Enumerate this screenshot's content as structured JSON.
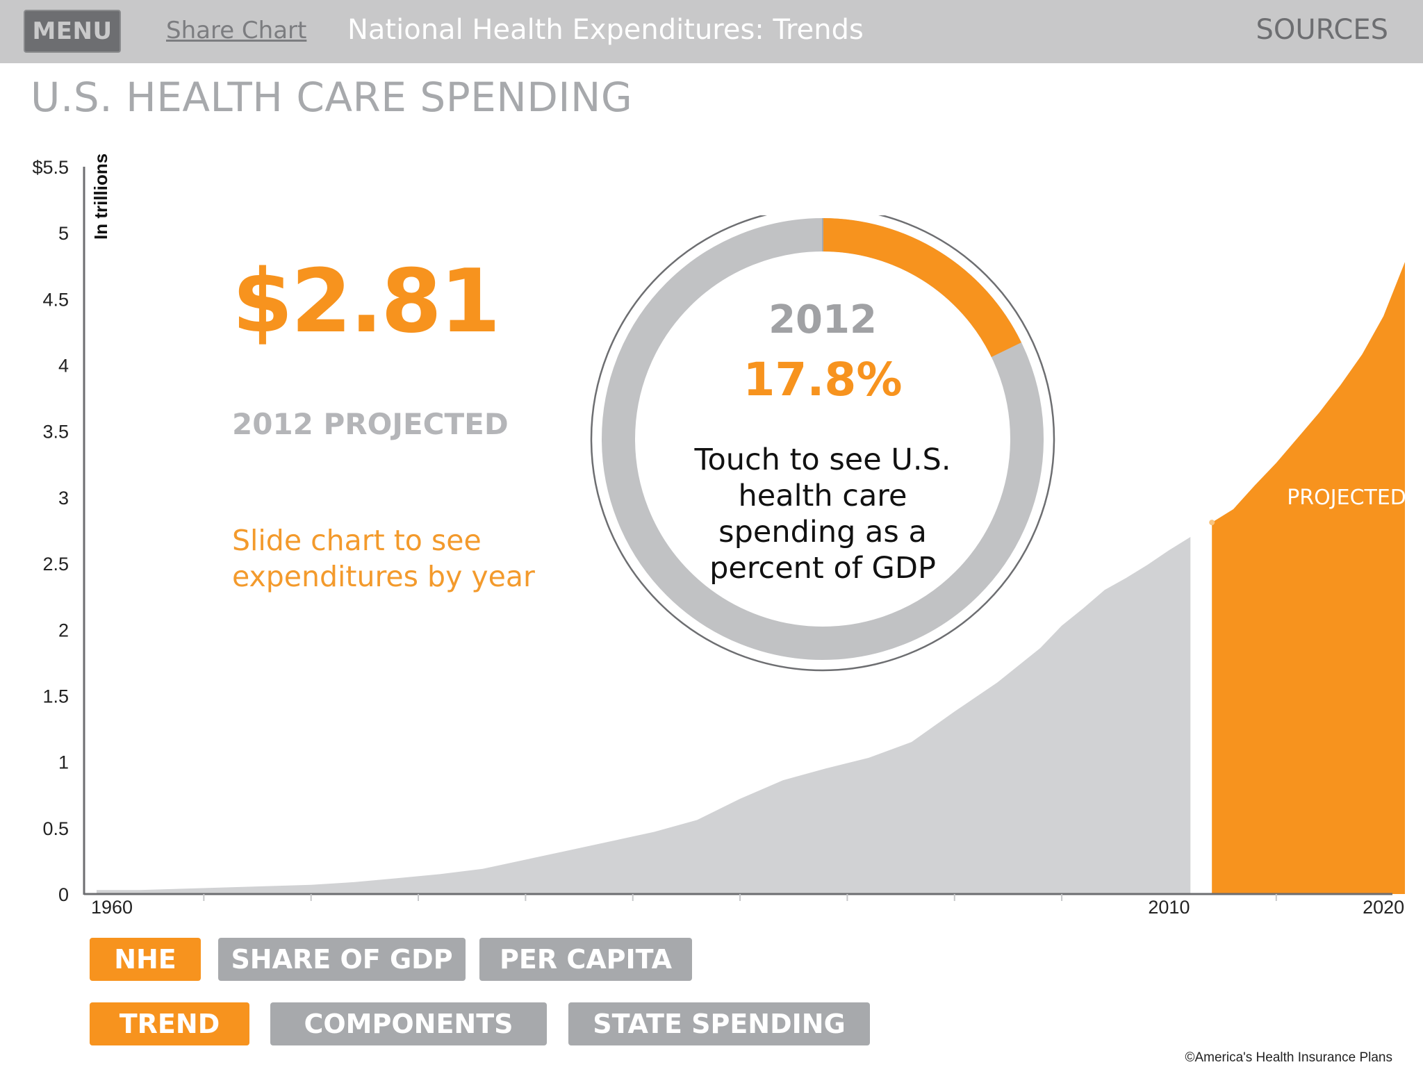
{
  "header": {
    "menu_label": "MENU",
    "share_label": "Share Chart",
    "title": "National Health Expenditures: Trends",
    "sources_label": "SOURCES"
  },
  "page_title": "U.S. HEALTH CARE SPENDING",
  "highlight": {
    "value": "$2.81",
    "year_label": "2012 PROJECTED",
    "slide_hint": "Slide chart to see expenditures by year"
  },
  "gdp_donut": {
    "year": "2012",
    "percent_text": "17.8%",
    "percent": 17.8,
    "hint": "Touch to see U.S. health care spending as a percent of GDP"
  },
  "tabs_row1": [
    {
      "label": "NHE",
      "active": true
    },
    {
      "label": "SHARE OF GDP",
      "active": false
    },
    {
      "label": "PER CAPITA",
      "active": false
    }
  ],
  "tabs_row2": [
    {
      "label": "TREND",
      "active": true
    },
    {
      "label": "COMPONENTS",
      "active": false
    },
    {
      "label": "STATE SPENDING",
      "active": false
    }
  ],
  "copyright": "©America's Health Insurance Plans",
  "colors": {
    "accent": "#f7931e",
    "historical_fill": "#d1d2d4",
    "inactive_tab": "#a7a9ac",
    "topbar": "#c8c8c9"
  },
  "chart_data": {
    "type": "area",
    "ylabel": "In trillions",
    "ylim": [
      0,
      5.5
    ],
    "yticks": [
      "$5.5",
      "5",
      "4.5",
      "4",
      "3.5",
      "3",
      "2.5",
      "2",
      "1.5",
      "1",
      "0.5",
      "0"
    ],
    "ytick_values": [
      5.5,
      5,
      4.5,
      4,
      3.5,
      3,
      2.5,
      2,
      1.5,
      1,
      0.5,
      0
    ],
    "xlim": [
      1960,
      2021
    ],
    "xticks": [
      "1960",
      "2010",
      "2020"
    ],
    "xtick_values": [
      1960,
      2010,
      2020
    ],
    "minor_xtick_values": [
      1965,
      1970,
      1975,
      1980,
      1985,
      1990,
      1995,
      2000,
      2005,
      2015
    ],
    "series": [
      {
        "name": "",
        "values": [
          [
            1960,
            0.03
          ],
          [
            1962,
            0.03
          ],
          [
            1964,
            0.04
          ],
          [
            1966,
            0.05
          ],
          [
            1968,
            0.06
          ],
          [
            1970,
            0.07
          ],
          [
            1972,
            0.09
          ],
          [
            1974,
            0.12
          ],
          [
            1976,
            0.15
          ],
          [
            1978,
            0.19
          ],
          [
            1980,
            0.26
          ],
          [
            1982,
            0.33
          ],
          [
            1984,
            0.4
          ],
          [
            1986,
            0.47
          ],
          [
            1988,
            0.56
          ],
          [
            1990,
            0.72
          ],
          [
            1992,
            0.86
          ],
          [
            1994,
            0.95
          ],
          [
            1996,
            1.03
          ],
          [
            1998,
            1.15
          ],
          [
            2000,
            1.38
          ],
          [
            2002,
            1.6
          ],
          [
            2004,
            1.86
          ],
          [
            2005,
            2.03
          ],
          [
            2006,
            2.16
          ],
          [
            2007,
            2.3
          ],
          [
            2008,
            2.39
          ],
          [
            2009,
            2.49
          ],
          [
            2010,
            2.6
          ],
          [
            2011,
            2.7
          ]
        ]
      },
      {
        "name": "PROJECTED",
        "values": [
          [
            2012,
            2.81
          ],
          [
            2013,
            2.91
          ],
          [
            2014,
            3.09
          ],
          [
            2015,
            3.26
          ],
          [
            2016,
            3.45
          ],
          [
            2017,
            3.64
          ],
          [
            2018,
            3.85
          ],
          [
            2019,
            4.08
          ],
          [
            2020,
            4.37
          ],
          [
            2021,
            4.78
          ]
        ]
      }
    ],
    "highlight_point": [
      2012,
      2.81
    ]
  }
}
